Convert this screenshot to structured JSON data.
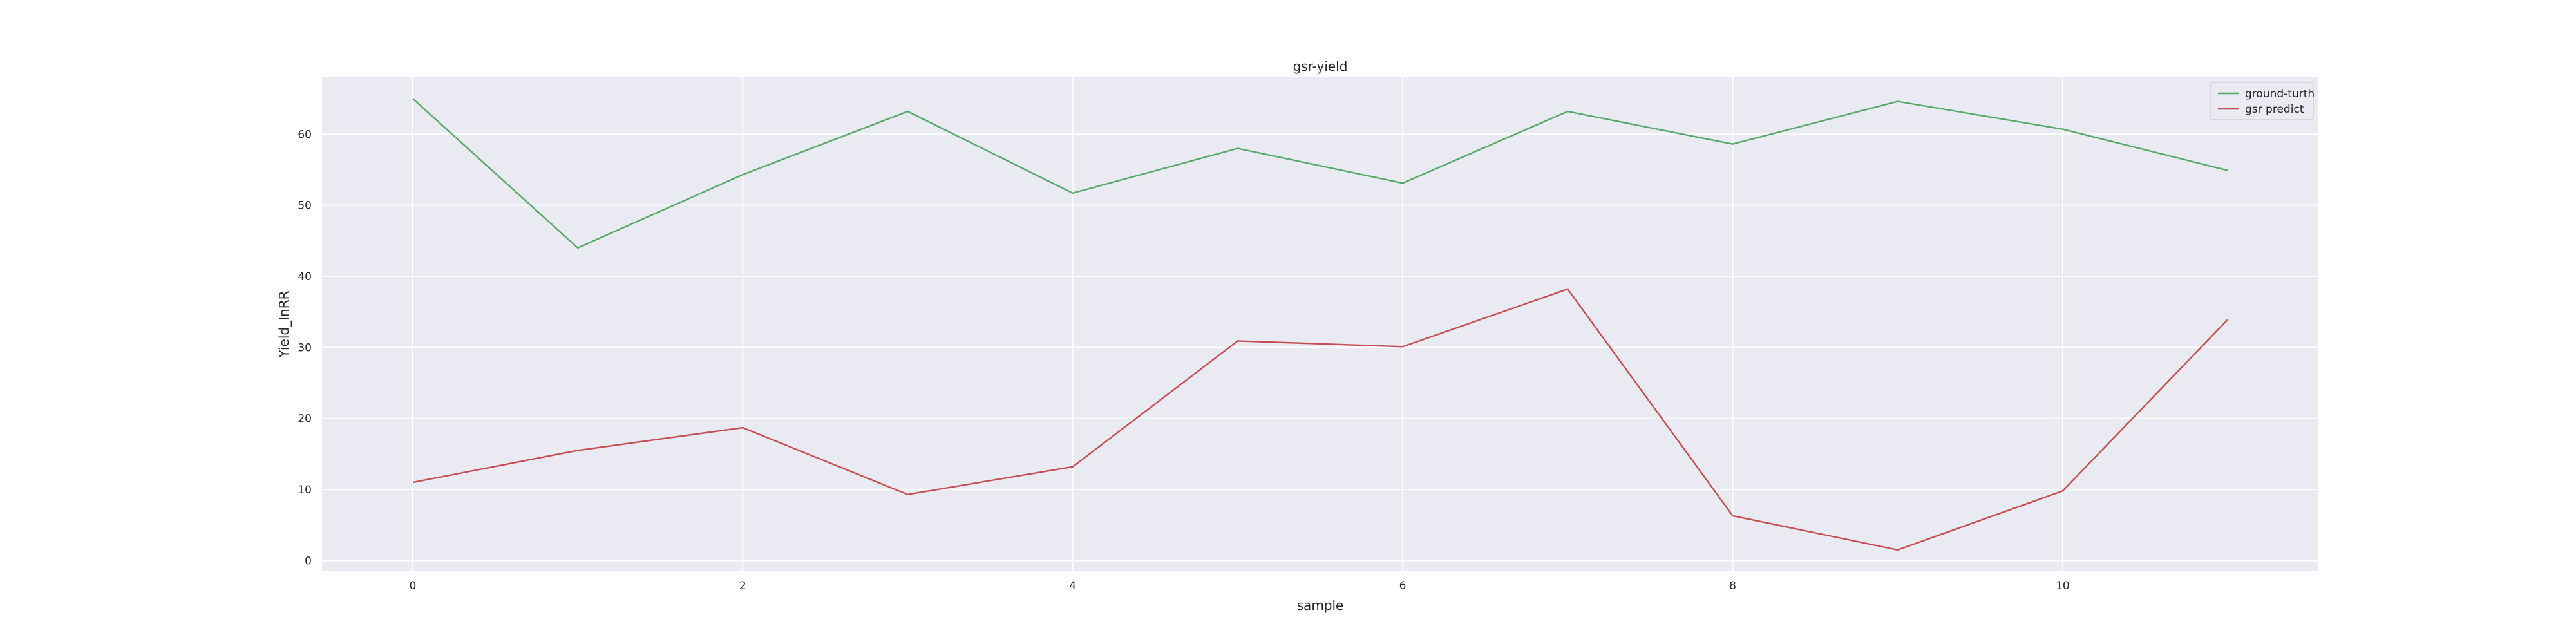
{
  "chart_data": {
    "type": "line",
    "title": "gsr-yield",
    "xlabel": "sample",
    "ylabel": "Yield_InRR",
    "x": [
      0,
      1,
      2,
      3,
      4,
      5,
      6,
      7,
      8,
      9,
      10,
      11
    ],
    "xlim": [
      -0.55,
      11.55
    ],
    "ylim": [
      -1.5,
      68
    ],
    "xticks": [
      0,
      2,
      4,
      6,
      8,
      10
    ],
    "yticks": [
      0,
      10,
      20,
      30,
      40,
      50,
      60
    ],
    "grid": true,
    "legend_position": "top-right",
    "series": [
      {
        "name": "ground-turth",
        "color": "#55a868",
        "values": [
          65.0,
          44.0,
          54.3,
          63.2,
          51.7,
          58.0,
          53.1,
          63.2,
          58.6,
          64.6,
          60.7,
          54.9
        ]
      },
      {
        "name": "gsr predict",
        "color": "#c44e52",
        "values": [
          11.0,
          15.5,
          18.7,
          9.3,
          13.2,
          30.9,
          30.1,
          38.2,
          6.3,
          1.5,
          9.8,
          33.9
        ]
      }
    ]
  },
  "colors": {
    "plot_background": "#eaeaf2",
    "grid": "#ffffff"
  }
}
